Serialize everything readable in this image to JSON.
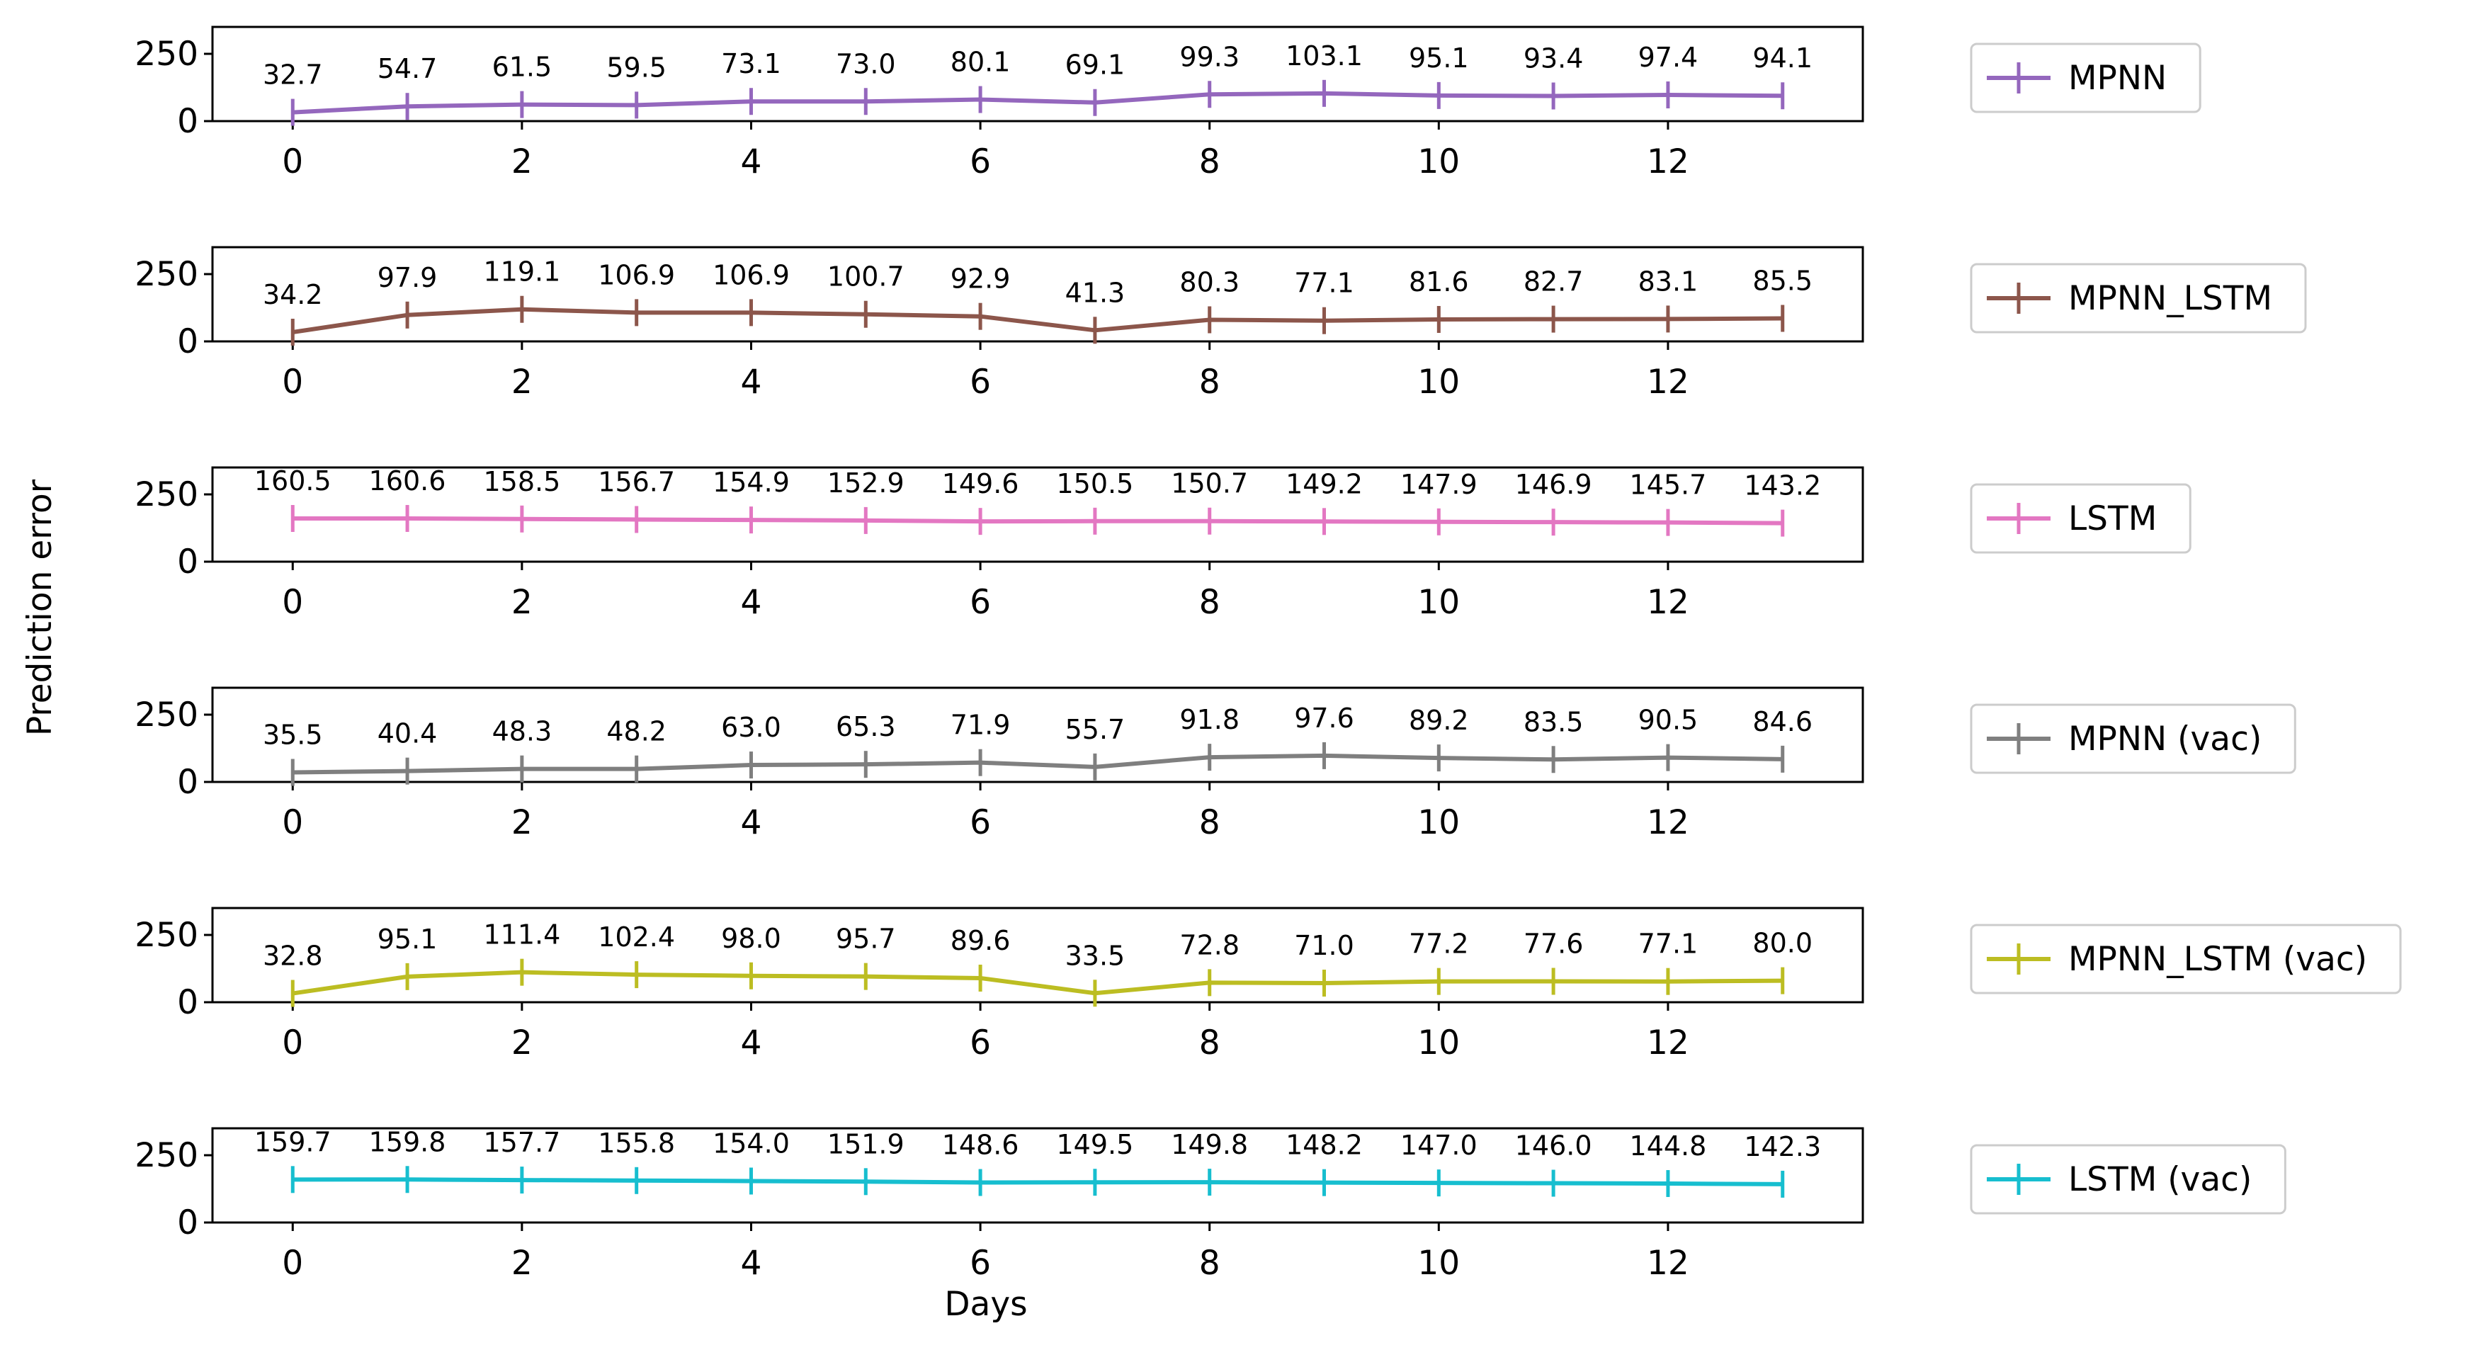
{
  "figure": {
    "ylabel": "Prediction error",
    "xlabel": "Days"
  },
  "chart_data": [
    {
      "type": "line",
      "name": "MPNN",
      "color": "#9467bd",
      "x": [
        0,
        1,
        2,
        3,
        4,
        5,
        6,
        7,
        8,
        9,
        10,
        11,
        12,
        13
      ],
      "values": [
        32.7,
        54.7,
        61.5,
        59.5,
        73.1,
        73.0,
        80.1,
        69.1,
        99.3,
        103.1,
        95.1,
        93.4,
        97.4,
        94.1
      ],
      "value_labels": [
        "32.7",
        "54.7",
        "61.5",
        "59.5",
        "73.1",
        "73.0",
        "80.1",
        "69.1",
        "99.3",
        "103.1",
        "95.1",
        "93.4",
        "97.4",
        "94.1"
      ],
      "xlim": [
        -0.7,
        13.7
      ],
      "ylim": [
        0,
        350
      ],
      "xticks": [
        "0",
        "2",
        "4",
        "6",
        "8",
        "10",
        "12"
      ],
      "yticks": [
        "0",
        "250"
      ],
      "legend": "MPNN",
      "legend_position": "right"
    },
    {
      "type": "line",
      "name": "MPNN_LSTM",
      "color": "#8c564b",
      "x": [
        0,
        1,
        2,
        3,
        4,
        5,
        6,
        7,
        8,
        9,
        10,
        11,
        12,
        13
      ],
      "values": [
        34.2,
        97.9,
        119.1,
        106.9,
        106.9,
        100.7,
        92.9,
        41.3,
        80.3,
        77.1,
        81.6,
        82.7,
        83.1,
        85.5
      ],
      "value_labels": [
        "34.2",
        "97.9",
        "119.1",
        "106.9",
        "106.9",
        "100.7",
        "92.9",
        "41.3",
        "80.3",
        "77.1",
        "81.6",
        "82.7",
        "83.1",
        "85.5"
      ],
      "xlim": [
        -0.7,
        13.7
      ],
      "ylim": [
        0,
        350
      ],
      "xticks": [
        "0",
        "2",
        "4",
        "6",
        "8",
        "10",
        "12"
      ],
      "yticks": [
        "0",
        "250"
      ],
      "legend": "MPNN_LSTM",
      "legend_position": "right"
    },
    {
      "type": "line",
      "name": "LSTM",
      "color": "#e377c2",
      "x": [
        0,
        1,
        2,
        3,
        4,
        5,
        6,
        7,
        8,
        9,
        10,
        11,
        12,
        13
      ],
      "values": [
        160.5,
        160.6,
        158.5,
        156.7,
        154.9,
        152.9,
        149.6,
        150.5,
        150.7,
        149.2,
        147.9,
        146.9,
        145.7,
        143.2
      ],
      "value_labels": [
        "160.5",
        "160.6",
        "158.5",
        "156.7",
        "154.9",
        "152.9",
        "149.6",
        "150.5",
        "150.7",
        "149.2",
        "147.9",
        "146.9",
        "145.7",
        "143.2"
      ],
      "xlim": [
        -0.7,
        13.7
      ],
      "ylim": [
        0,
        350
      ],
      "xticks": [
        "0",
        "2",
        "4",
        "6",
        "8",
        "10",
        "12"
      ],
      "yticks": [
        "0",
        "250"
      ],
      "legend": "LSTM",
      "legend_position": "right"
    },
    {
      "type": "line",
      "name": "MPNN (vac)",
      "color": "#7f7f7f",
      "x": [
        0,
        1,
        2,
        3,
        4,
        5,
        6,
        7,
        8,
        9,
        10,
        11,
        12,
        13
      ],
      "values": [
        35.5,
        40.4,
        48.3,
        48.2,
        63.0,
        65.3,
        71.9,
        55.7,
        91.8,
        97.6,
        89.2,
        83.5,
        90.5,
        84.6
      ],
      "value_labels": [
        "35.5",
        "40.4",
        "48.3",
        "48.2",
        "63.0",
        "65.3",
        "71.9",
        "55.7",
        "91.8",
        "97.6",
        "89.2",
        "83.5",
        "90.5",
        "84.6"
      ],
      "xlim": [
        -0.7,
        13.7
      ],
      "ylim": [
        0,
        350
      ],
      "xticks": [
        "0",
        "2",
        "4",
        "6",
        "8",
        "10",
        "12"
      ],
      "yticks": [
        "0",
        "250"
      ],
      "legend": "MPNN (vac)",
      "legend_position": "right"
    },
    {
      "type": "line",
      "name": "MPNN_LSTM (vac)",
      "color": "#bcbd22",
      "x": [
        0,
        1,
        2,
        3,
        4,
        5,
        6,
        7,
        8,
        9,
        10,
        11,
        12,
        13
      ],
      "values": [
        32.8,
        95.1,
        111.4,
        102.4,
        98.0,
        95.7,
        89.6,
        33.5,
        72.8,
        71.0,
        77.2,
        77.6,
        77.1,
        80.0
      ],
      "value_labels": [
        "32.8",
        "95.1",
        "111.4",
        "102.4",
        "98.0",
        "95.7",
        "89.6",
        "33.5",
        "72.8",
        "71.0",
        "77.2",
        "77.6",
        "77.1",
        "80.0"
      ],
      "xlim": [
        -0.7,
        13.7
      ],
      "ylim": [
        0,
        350
      ],
      "xticks": [
        "0",
        "2",
        "4",
        "6",
        "8",
        "10",
        "12"
      ],
      "yticks": [
        "0",
        "250"
      ],
      "legend": "MPNN_LSTM (vac)",
      "legend_position": "right"
    },
    {
      "type": "line",
      "name": "LSTM (vac)",
      "color": "#17becf",
      "x": [
        0,
        1,
        2,
        3,
        4,
        5,
        6,
        7,
        8,
        9,
        10,
        11,
        12,
        13
      ],
      "values": [
        159.7,
        159.8,
        157.7,
        155.8,
        154.0,
        151.9,
        148.6,
        149.5,
        149.8,
        148.2,
        147.0,
        146.0,
        144.8,
        142.3
      ],
      "value_labels": [
        "159.7",
        "159.8",
        "157.7",
        "155.8",
        "154.0",
        "151.9",
        "148.6",
        "149.5",
        "149.8",
        "148.2",
        "147.0",
        "146.0",
        "144.8",
        "142.3"
      ],
      "xlim": [
        -0.7,
        13.7
      ],
      "ylim": [
        0,
        350
      ],
      "xticks": [
        "0",
        "2",
        "4",
        "6",
        "8",
        "10",
        "12"
      ],
      "yticks": [
        "0",
        "250"
      ],
      "legend": "LSTM (vac)",
      "legend_position": "right"
    }
  ]
}
